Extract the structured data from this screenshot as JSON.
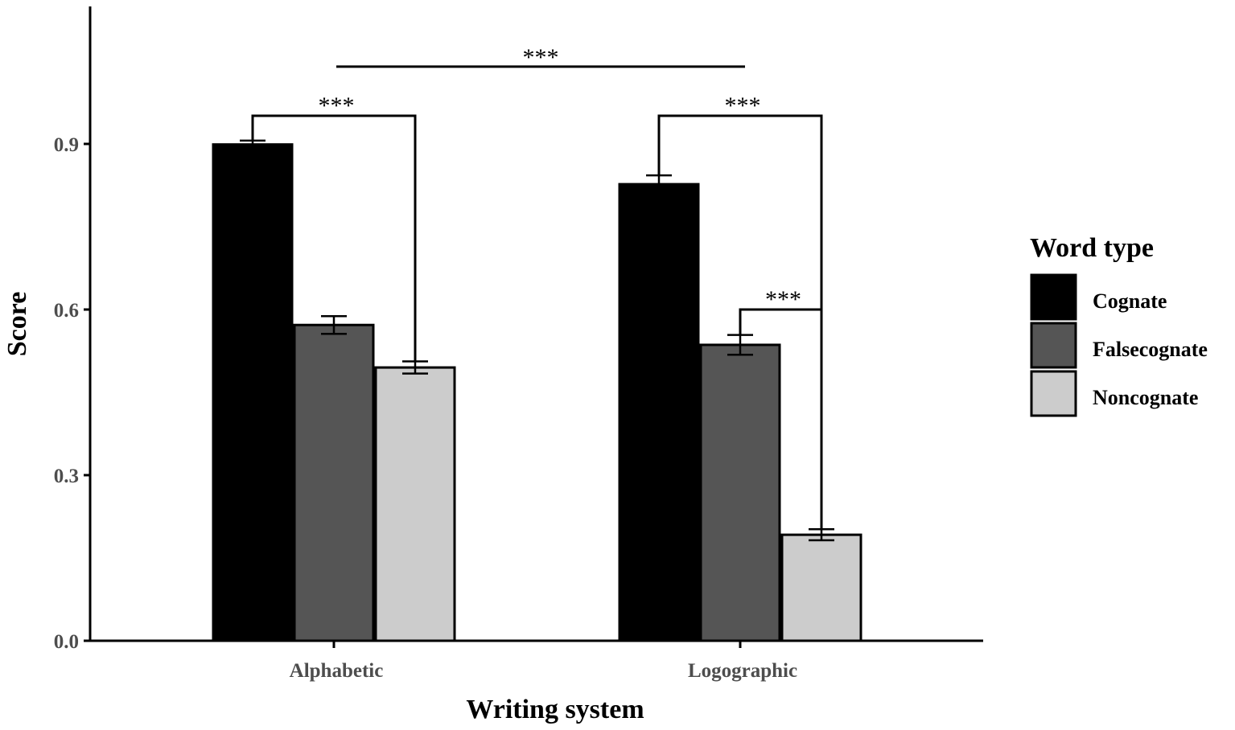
{
  "chart_data": {
    "type": "bar",
    "xlabel": "Writing system",
    "ylabel": "Score",
    "categories": [
      "Alphabetic",
      "Logographic"
    ],
    "ylim": [
      0,
      1.15
    ],
    "yticks": [
      "0.0",
      "0.3",
      "0.6",
      "0.9"
    ],
    "ytick_values": [
      0,
      0.3,
      0.6,
      0.9
    ],
    "grid": false,
    "legend": {
      "title": "Word type",
      "position": "right"
    },
    "series": [
      {
        "name": "Cognate",
        "color": "#000000",
        "values": [
          0.899,
          0.827
        ],
        "errors": [
          0.007,
          0.016
        ]
      },
      {
        "name": "Falsecognate",
        "color": "#555555",
        "values": [
          0.572,
          0.536
        ],
        "errors": [
          0.016,
          0.018
        ]
      },
      {
        "name": "Noncognate",
        "color": "#cccccc",
        "values": [
          0.495,
          0.192
        ],
        "errors": [
          0.011,
          0.01
        ]
      }
    ],
    "annotations": [
      {
        "label": "***",
        "type": "between-groups",
        "y": 1.04
      },
      {
        "label": "***",
        "type": "within-group",
        "group": 0,
        "from": 0,
        "to": 2,
        "y": 0.951
      },
      {
        "label": "***",
        "type": "within-group",
        "group": 1,
        "from": 0,
        "to": 2,
        "y": 0.951
      },
      {
        "label": "***",
        "type": "within-group",
        "group": 1,
        "from": 1,
        "to": 2,
        "y": 0.6
      }
    ]
  }
}
